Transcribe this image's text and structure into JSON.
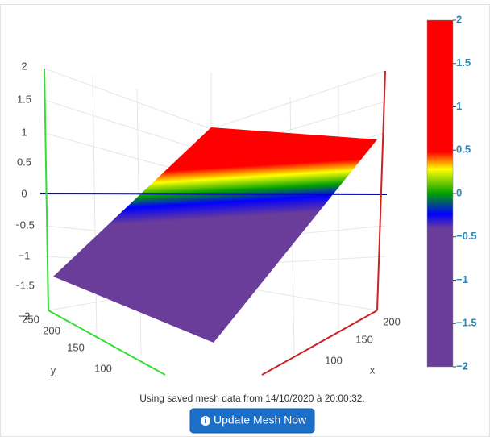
{
  "plot": {
    "z_ticks": [
      "2",
      "1.5",
      "1",
      "0.5",
      "0",
      "−0.5",
      "−1",
      "−1.5",
      "−2"
    ],
    "x_axis": {
      "title": "x",
      "ticks": [
        "100",
        "150",
        "200"
      ]
    },
    "y_axis": {
      "title": "y",
      "ticks": [
        "100",
        "150",
        "200",
        "250"
      ]
    },
    "colorbar": {
      "ticks": [
        "2",
        "1.5",
        "1",
        "0.5",
        "0",
        "−0.5",
        "−1",
        "−1.5",
        "−2"
      ]
    }
  },
  "status": "Using saved mesh data from 14/10/2020 à 20:00:32.",
  "button": "Update Mesh Now"
}
